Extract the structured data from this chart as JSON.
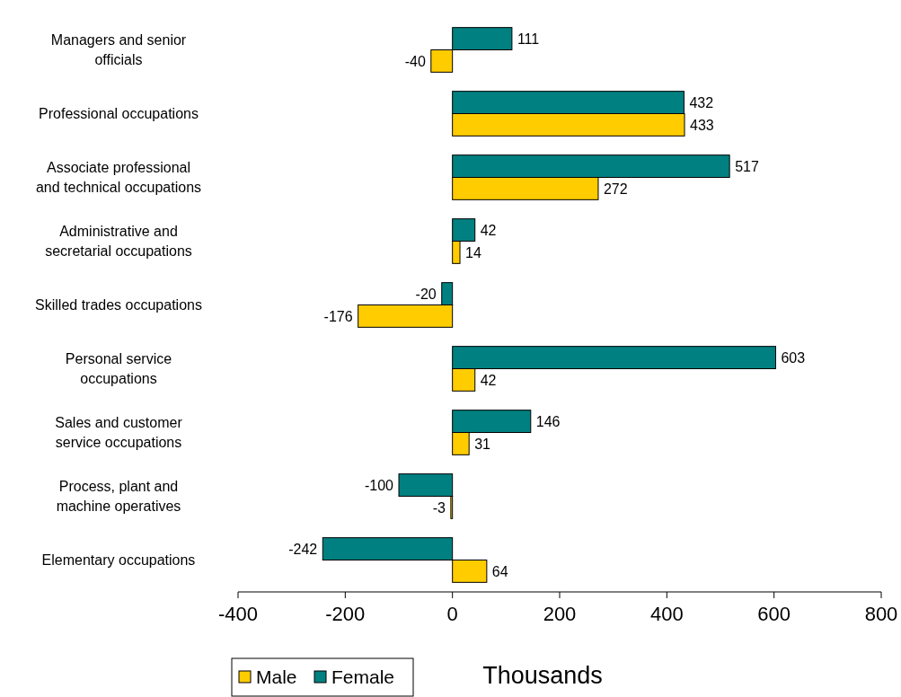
{
  "chart_data": {
    "type": "bar",
    "orientation": "horizontal",
    "categories": [
      "Managers and senior\nofficials",
      "Professional occupations",
      "Associate professional\nand technical occupations",
      "Administrative and\nsecretarial occupations",
      "Skilled trades occupations",
      "Personal service\noccupations",
      "Sales and customer\nservice occupations",
      "Process, plant and\nmachine operatives",
      "Elementary occupations"
    ],
    "series": [
      {
        "name": "Male",
        "color": "#ffcc00",
        "values": [
          -40,
          433,
          272,
          14,
          -176,
          42,
          31,
          -3,
          64
        ]
      },
      {
        "name": "Female",
        "color": "#008080",
        "values": [
          111,
          432,
          517,
          42,
          -20,
          603,
          146,
          -100,
          -242
        ]
      }
    ],
    "xlim": [
      -400,
      800
    ],
    "xticks": [
      -400,
      -200,
      0,
      200,
      400,
      600,
      800
    ],
    "xlabel": "Thousands",
    "data_labels": true,
    "legend": "bottom left",
    "grid": false
  }
}
